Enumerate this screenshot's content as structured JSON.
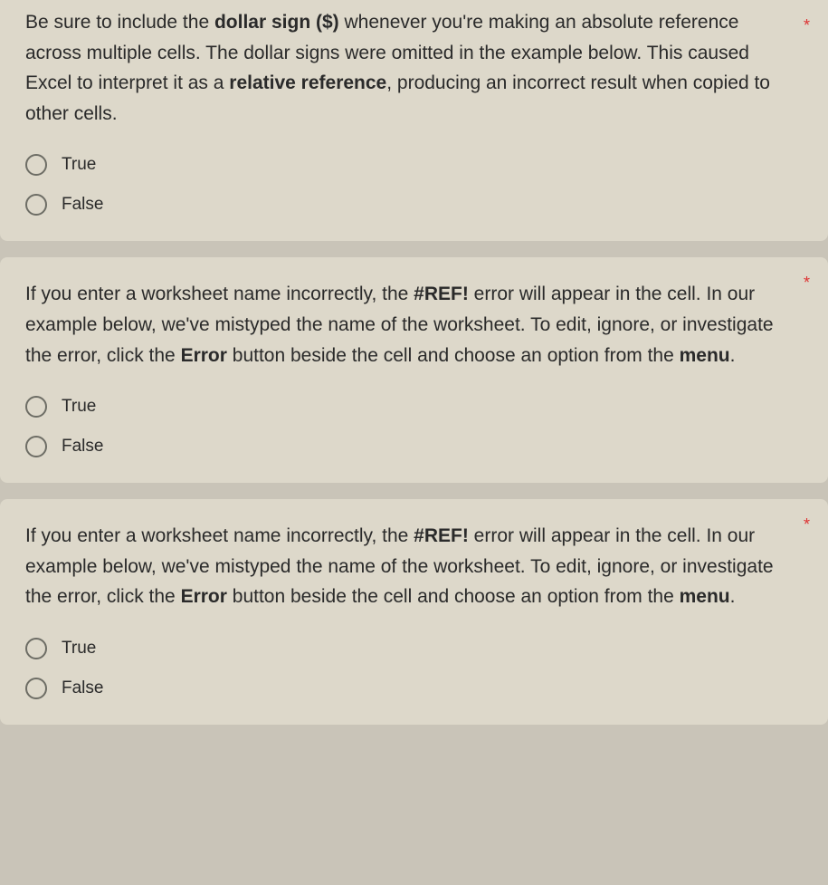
{
  "questions": [
    {
      "parts": [
        {
          "text": "Be sure to include the ",
          "bold": false
        },
        {
          "text": "dollar sign ($)",
          "bold": true
        },
        {
          "text": " whenever you're making an absolute reference across multiple cells. The dollar signs were omitted in the example below. This caused Excel to interpret it as a ",
          "bold": false
        },
        {
          "text": "relative reference",
          "bold": true
        },
        {
          "text": ", producing an incorrect result when copied to other cells.",
          "bold": false
        }
      ],
      "required": true,
      "asterisk_inline": false,
      "options": [
        "True",
        "False"
      ]
    },
    {
      "parts": [
        {
          "text": "If you enter a worksheet name incorrectly, the ",
          "bold": false
        },
        {
          "text": "#REF!",
          "bold": true
        },
        {
          "text": " error will appear in the cell. In our example below, we've mistyped the name of the worksheet. To edit, ignore, or investigate the error, click the ",
          "bold": false
        },
        {
          "text": "Error",
          "bold": true
        },
        {
          "text": " button beside the cell and choose an option from the ",
          "bold": false
        },
        {
          "text": "menu",
          "bold": true
        },
        {
          "text": ".",
          "bold": false
        }
      ],
      "required": true,
      "asterisk_inline": true,
      "options": [
        "True",
        "False"
      ]
    },
    {
      "parts": [
        {
          "text": "If you enter a worksheet name incorrectly, the ",
          "bold": false
        },
        {
          "text": "#REF!",
          "bold": true
        },
        {
          "text": " error will appear in the cell. In our example below, we've mistyped the name of the worksheet. To edit, ignore, or investigate the error, click the ",
          "bold": false
        },
        {
          "text": "Error",
          "bold": true
        },
        {
          "text": " button beside the cell and choose an option from the ",
          "bold": false
        },
        {
          "text": "menu",
          "bold": true
        },
        {
          "text": ".",
          "bold": false
        }
      ],
      "required": true,
      "asterisk_inline": true,
      "options": [
        "True",
        "False"
      ]
    }
  ],
  "styling": {
    "background_color": "#c9c4b8",
    "card_background": "#ddd8ca",
    "text_color": "#2a2a2a",
    "radio_border_color": "#6d6d65",
    "asterisk_color": "#d33",
    "question_fontsize": 21,
    "option_fontsize": 19,
    "line_height": 1.6
  }
}
